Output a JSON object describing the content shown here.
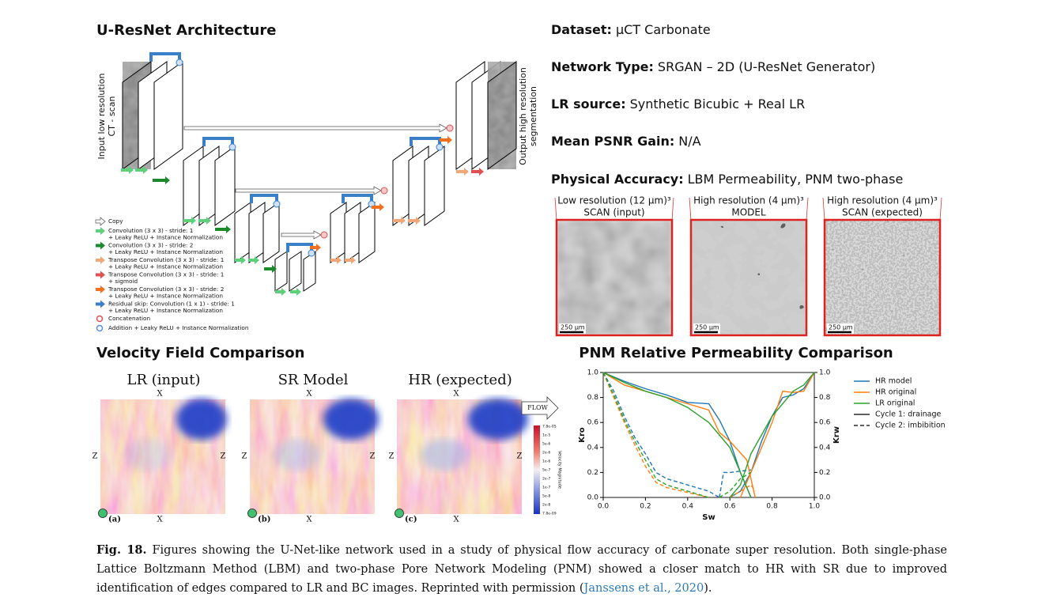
{
  "architecture": {
    "title": "U-ResNet Architecture",
    "input_label": [
      "Input low resolution",
      "CT - scan"
    ],
    "output_label": [
      "Output high resolution",
      "segmentation"
    ],
    "legend": [
      {
        "color": "#ffffff",
        "lines": [
          "Copy"
        ]
      },
      {
        "color": "#5fd07a",
        "lines": [
          "Convolution (3 x 3) - stride: 1",
          "+ Leaky ReLU + Instance Normalization"
        ]
      },
      {
        "color": "#1a8a2a",
        "lines": [
          "Convolution (3 x 3) - stride: 2",
          "+ Leaky ReLU + Instance Normalization"
        ]
      },
      {
        "color": "#f0a878",
        "lines": [
          "Transpose Convolution (3 x 3) - stride: 1",
          "+ Leaky ReLU + Instance Normalization"
        ]
      },
      {
        "color": "#e05050",
        "lines": [
          "Transpose Convolution (3 x 3) - stride: 1",
          "+ sigmoid"
        ]
      },
      {
        "color": "#f07020",
        "lines": [
          "Transpose Convolution (3 x 3) - stride: 2",
          "+ Leaky ReLU + Instance Normalization"
        ]
      },
      {
        "color": "#3a80c8",
        "lines": [
          "Residual skip: Convolution (1 x 1) - stride: 1",
          "+ Leaky ReLU + Instance Normalization"
        ]
      },
      {
        "color": "#e05050",
        "lines": [
          "Concatenation"
        ]
      },
      {
        "color": "#5a90d8",
        "lines": [
          "Addition + Leaky ReLU + Instance Normalization"
        ]
      }
    ]
  },
  "info": [
    {
      "label": "Dataset:",
      "value": "μCT Carbonate"
    },
    {
      "label": "Network Type:",
      "value": "SRGAN – 2D (U-ResNet Generator)"
    },
    {
      "label": "LR source:",
      "value": "Synthetic Bicubic + Real LR"
    },
    {
      "label": "Mean PSNR Gain:",
      "value": "N/A"
    },
    {
      "label": "Physical Accuracy:",
      "value": "LBM Permeability, PNM two-phase"
    }
  ],
  "scans": [
    {
      "lines": [
        "Low resolution (12 μm)³",
        "SCAN (input)"
      ],
      "scale": "250 μm"
    },
    {
      "lines": [
        "High resolution (4 μm)³",
        "MODEL"
      ],
      "scale": "250 μm"
    },
    {
      "lines": [
        "High resolution (4 μm)³",
        "SCAN (expected)"
      ],
      "scale": "250 μm"
    }
  ],
  "velocity": {
    "title": "Velocity Field Comparison",
    "panels": [
      {
        "title": "LR (input)",
        "tag": "(a)"
      },
      {
        "title": "SR Model",
        "tag": "(b)"
      },
      {
        "title": "HR (expected)",
        "tag": "(c)"
      }
    ],
    "x_label": "X",
    "z_label": "Z",
    "flow": "FLOW",
    "colorbar_title": "Velocity Magnitude",
    "colorbar_labels": [
      "7.8e-05",
      "1e-5",
      "5e-6",
      "2e-6",
      "1e-6",
      "5e-7",
      "2e-7",
      "1e-7",
      "5e-8",
      "2e-8",
      "7.8e-09"
    ]
  },
  "chart_data": {
    "type": "line",
    "title": "PNM Relative Permeability Comparison",
    "x_label": "Sw",
    "y_label": "Kro",
    "y2_label": "Krw",
    "xlim": [
      0,
      1
    ],
    "ylim": [
      0,
      1
    ],
    "y2lim": [
      0,
      1
    ],
    "xticks": [
      {
        "value": 0,
        "label": "0.0"
      },
      0.2,
      0.4,
      0.6,
      0.8,
      {
        "value": 1,
        "label": "1.0"
      }
    ],
    "yticks": [
      {
        "value": 0,
        "label": "0.0"
      },
      0.2,
      0.4,
      0.6,
      0.8,
      {
        "value": 1,
        "label": "1.0"
      }
    ],
    "y2ticks": [
      {
        "value": 0,
        "label": "0.0"
      },
      0.2,
      0.4,
      0.6,
      0.8,
      {
        "value": 1,
        "label": "1.0"
      }
    ],
    "cycles": [
      {
        "name": "Cycle 1: drainage",
        "dash": "solid"
      },
      {
        "name": "Cycle 2: imbibition",
        "dash": "dashed"
      }
    ],
    "series": [
      {
        "name": "HR model",
        "color": "#1f77b4",
        "curves": [
          {
            "cycle": 0,
            "axis": "y",
            "x": [
              0,
              0.1,
              0.2,
              0.3,
              0.4,
              0.5,
              0.55,
              0.6,
              0.65,
              0.7
            ],
            "values": [
              1,
              0.93,
              0.87,
              0.82,
              0.76,
              0.75,
              0.62,
              0.45,
              0.2,
              0
            ]
          },
          {
            "cycle": 0,
            "axis": "y2",
            "x": [
              0.6,
              0.65,
              0.7,
              0.75,
              0.8,
              0.85,
              0.9,
              0.95,
              1
            ],
            "values": [
              0,
              0.05,
              0.2,
              0.45,
              0.65,
              0.8,
              0.82,
              0.87,
              1
            ]
          },
          {
            "cycle": 1,
            "axis": "y",
            "x": [
              0,
              0.05,
              0.1,
              0.15,
              0.2,
              0.25,
              0.3,
              0.4,
              0.5,
              0.55
            ],
            "values": [
              1,
              0.85,
              0.65,
              0.48,
              0.35,
              0.2,
              0.15,
              0.1,
              0.05,
              0
            ]
          },
          {
            "cycle": 1,
            "axis": "y2",
            "x": [
              0.55,
              0.57,
              0.6,
              0.65,
              0.7
            ],
            "values": [
              0,
              0.2,
              0.2,
              0.21,
              0.22
            ]
          }
        ]
      },
      {
        "name": "HR original",
        "color": "#ff7f0e",
        "curves": [
          {
            "cycle": 0,
            "axis": "y",
            "x": [
              0,
              0.1,
              0.2,
              0.3,
              0.4,
              0.5,
              0.55,
              0.6,
              0.68,
              0.72
            ],
            "values": [
              1,
              0.9,
              0.85,
              0.8,
              0.75,
              0.7,
              0.52,
              0.45,
              0.3,
              0
            ]
          },
          {
            "cycle": 0,
            "axis": "y2",
            "x": [
              0.65,
              0.7,
              0.75,
              0.8,
              0.85,
              0.9,
              0.95,
              1
            ],
            "values": [
              0,
              0.2,
              0.4,
              0.6,
              0.85,
              0.84,
              0.85,
              1
            ]
          },
          {
            "cycle": 1,
            "axis": "y",
            "x": [
              0,
              0.05,
              0.1,
              0.15,
              0.2,
              0.25,
              0.3,
              0.4,
              0.5
            ],
            "values": [
              1,
              0.8,
              0.6,
              0.42,
              0.25,
              0.12,
              0.08,
              0.04,
              0
            ]
          },
          {
            "cycle": 1,
            "axis": "y2",
            "x": [
              0.6,
              0.65,
              0.7,
              0.72
            ],
            "values": [
              0,
              0.05,
              0.1,
              0.05
            ]
          }
        ]
      },
      {
        "name": "LR original",
        "color": "#2ca02c",
        "curves": [
          {
            "cycle": 0,
            "axis": "y",
            "x": [
              0,
              0.1,
              0.2,
              0.3,
              0.4,
              0.5,
              0.55,
              0.6,
              0.65,
              0.7
            ],
            "values": [
              1,
              0.92,
              0.85,
              0.8,
              0.72,
              0.6,
              0.5,
              0.4,
              0.2,
              0
            ]
          },
          {
            "cycle": 0,
            "axis": "y2",
            "x": [
              0.6,
              0.65,
              0.7,
              0.75,
              0.8,
              0.85,
              0.9,
              0.95,
              1
            ],
            "values": [
              0,
              0.1,
              0.35,
              0.5,
              0.65,
              0.75,
              0.85,
              0.9,
              1
            ]
          },
          {
            "cycle": 1,
            "axis": "y",
            "x": [
              0,
              0.05,
              0.1,
              0.15,
              0.2,
              0.25,
              0.3,
              0.4,
              0.5
            ],
            "values": [
              1,
              0.82,
              0.62,
              0.45,
              0.3,
              0.15,
              0.1,
              0.05,
              0
            ]
          },
          {
            "cycle": 1,
            "axis": "y2",
            "x": [
              0.55,
              0.6,
              0.65,
              0.7
            ],
            "values": [
              0,
              0.05,
              0.15,
              0.2
            ]
          }
        ]
      }
    ]
  },
  "caption": {
    "label": "Fig. 18.",
    "text": "Figures showing the U-Net-like network used in a study of physical flow accuracy of carbonate super resolution. Both single-phase Lattice Boltzmann Method (LBM) and two-phase Pore Network Modeling (PNM) showed a closer match to HR with SR due to improved identification of edges compared to LR and BC images. Reprinted with permission (",
    "citation": "Janssens et al., 2020",
    "text_after": ")."
  }
}
